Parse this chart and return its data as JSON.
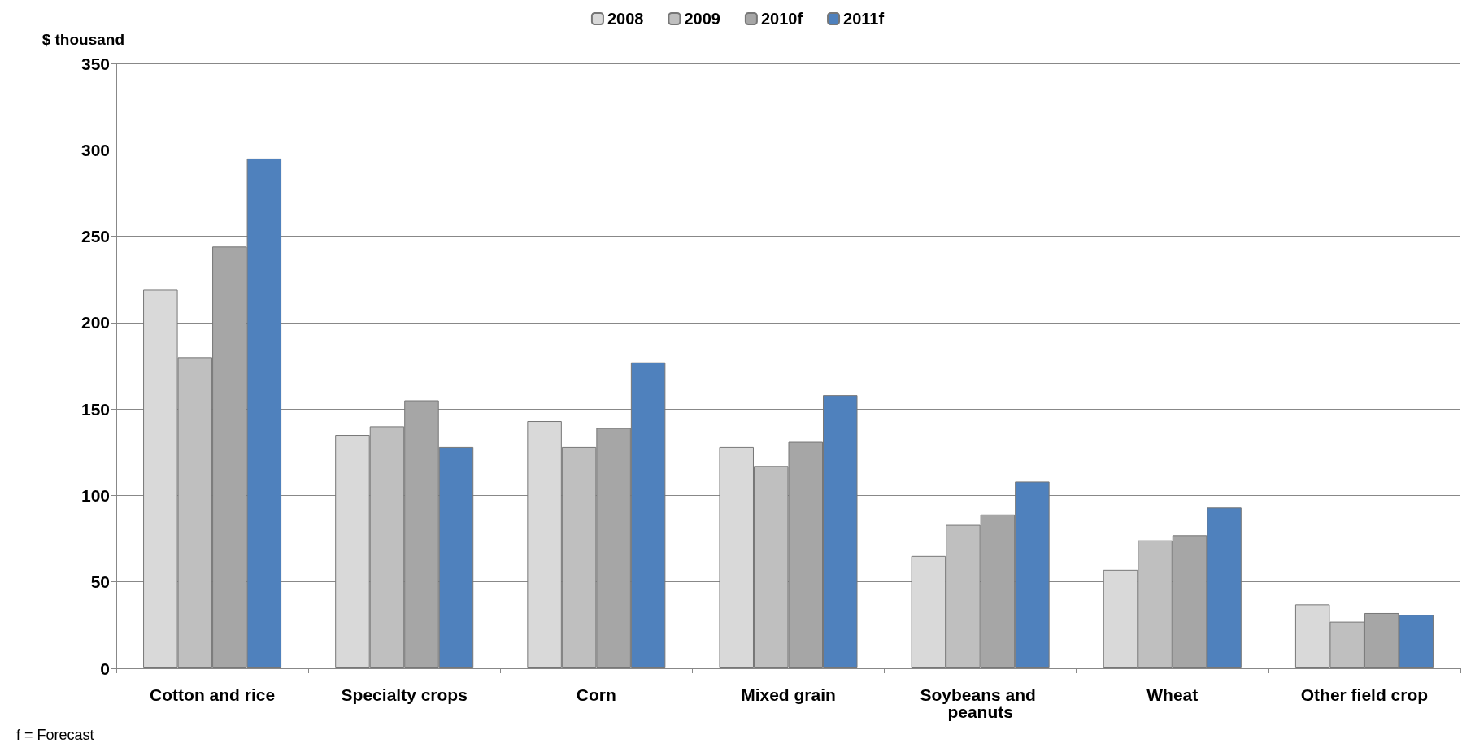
{
  "chart_data": {
    "type": "bar",
    "ylabel": "$ thousand",
    "categories": [
      "Cotton and rice",
      "Specialty crops",
      "Corn",
      "Mixed grain",
      "Soybeans and peanuts",
      "Wheat",
      "Other field crop"
    ],
    "series": [
      {
        "name": "2008",
        "color": "#d9d9d9",
        "values": [
          219,
          135,
          143,
          128,
          65,
          57,
          37
        ]
      },
      {
        "name": "2009",
        "color": "#bfbfbf",
        "values": [
          180,
          140,
          128,
          117,
          83,
          74,
          27
        ]
      },
      {
        "name": "2010f",
        "color": "#a6a6a6",
        "values": [
          244,
          155,
          139,
          131,
          89,
          77,
          32
        ]
      },
      {
        "name": "2011f",
        "color": "#4f81bd",
        "values": [
          295,
          128,
          177,
          158,
          108,
          93,
          31
        ]
      }
    ],
    "ylim": [
      0,
      350
    ],
    "yticks": [
      0,
      50,
      100,
      150,
      200,
      250,
      300,
      350
    ],
    "grid": "y",
    "legend": "top",
    "annotations": [
      "f = Forecast"
    ]
  }
}
